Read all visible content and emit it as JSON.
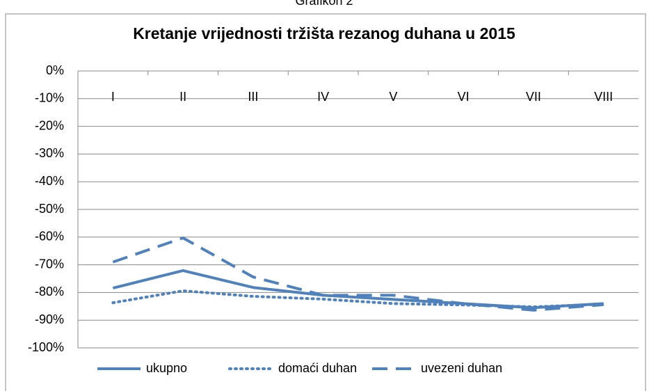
{
  "chart_data": {
    "type": "line",
    "caption": "Grafikon 2",
    "title": "Kretanje vrijednosti tržišta rezanog duhana u 2015",
    "categories": [
      "I",
      "II",
      "III",
      "IV",
      "V",
      "VI",
      "VII",
      "VIII"
    ],
    "ylim": [
      -100,
      0
    ],
    "yticks": [
      {
        "value": 0,
        "label": "0%"
      },
      {
        "value": -10,
        "label": "-10%"
      },
      {
        "value": -20,
        "label": "-20%"
      },
      {
        "value": -30,
        "label": "-30%"
      },
      {
        "value": -40,
        "label": "-40%"
      },
      {
        "value": -50,
        "label": "-50%"
      },
      {
        "value": -60,
        "label": "-60%"
      },
      {
        "value": -70,
        "label": "-70%"
      },
      {
        "value": -80,
        "label": "-80%"
      },
      {
        "value": -90,
        "label": "-90%"
      },
      {
        "value": -100,
        "label": "-100%"
      }
    ],
    "grid": true,
    "legend": "bottom",
    "series": [
      {
        "name": "ukupno",
        "color": "#4f81bd",
        "style": "solid",
        "values": [
          -78.4,
          -72.1,
          -78.2,
          -81,
          -82.5,
          -84,
          -85.5,
          -84
        ]
      },
      {
        "name": "domaći duhan",
        "color": "#4f81bd",
        "style": "dotted",
        "values": [
          -83.7,
          -79.4,
          -81.4,
          -82.4,
          -84,
          -84.5,
          -85.2,
          -84.2
        ]
      },
      {
        "name": "uvezeni duhan",
        "color": "#4f81bd",
        "style": "dashed",
        "values": [
          -69,
          -60.3,
          -74.4,
          -81,
          -81,
          -84,
          -86.4,
          -84.4
        ]
      }
    ]
  }
}
